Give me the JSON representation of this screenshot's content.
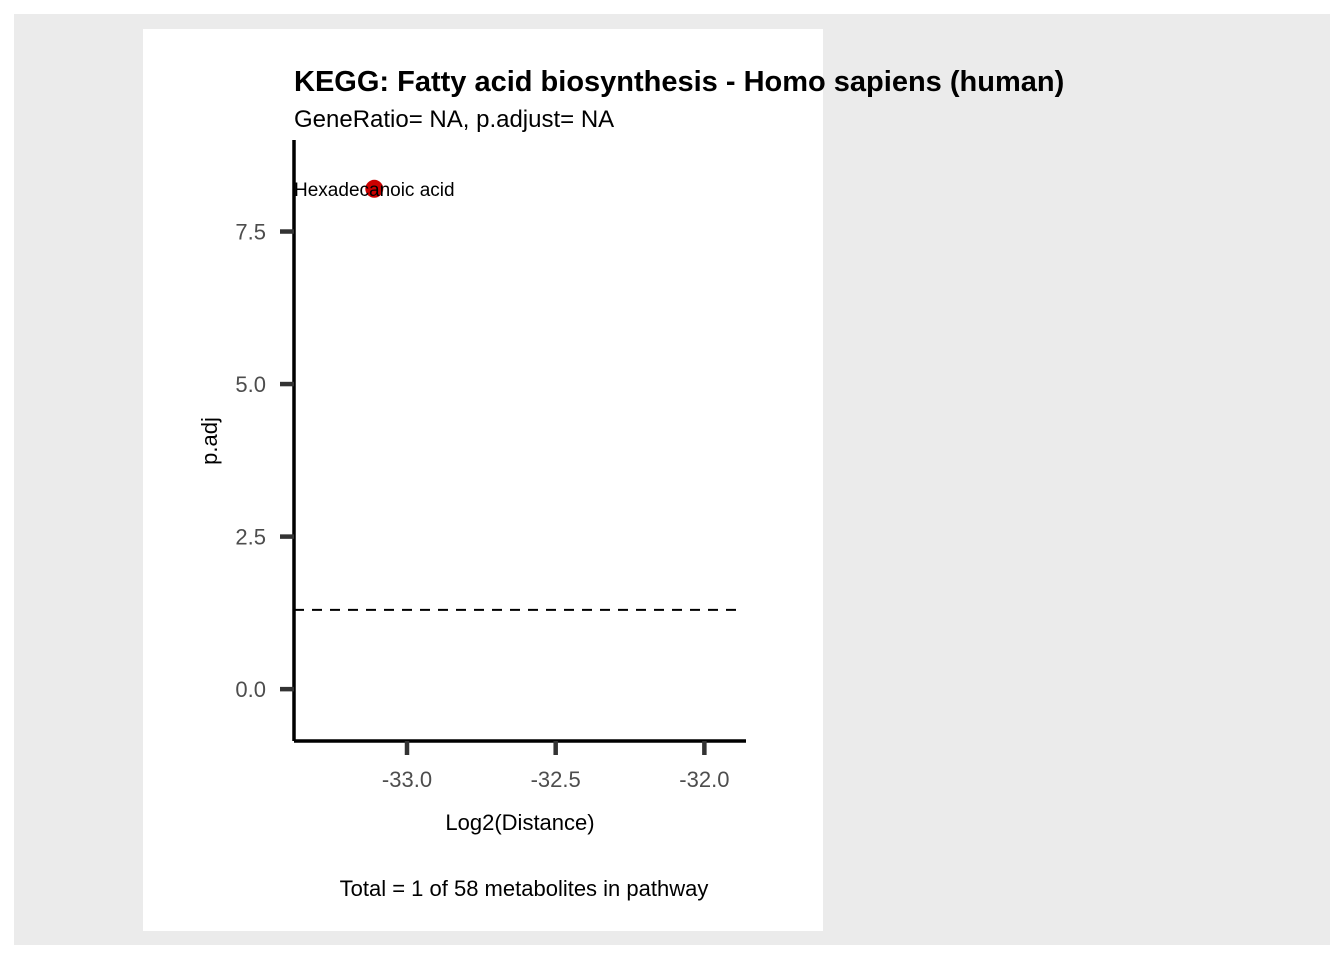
{
  "chart_data": {
    "type": "scatter",
    "title": "KEGG: Fatty acid biosynthesis - Homo sapiens (human)",
    "subtitle": "GeneRatio= NA, p.adjust= NA",
    "xlabel": "Log2(Distance)",
    "ylabel": "p.adj",
    "caption": "Total = 1 of 58 metabolites in pathway",
    "xlim": [
      -33.38,
      -31.86
    ],
    "ylim": [
      -0.85,
      9.0
    ],
    "x_ticks": [
      -33.0,
      -32.5,
      -32.0
    ],
    "x_tick_labels": [
      "-33.0",
      "-32.5",
      "-32.0"
    ],
    "y_ticks": [
      0.0,
      2.5,
      5.0,
      7.5
    ],
    "y_tick_labels": [
      "0.0",
      "2.5",
      "5.0",
      "7.5"
    ],
    "reference_line": {
      "y": 1.3,
      "style": "dashed",
      "color": "#000000"
    },
    "points": [
      {
        "x": -33.11,
        "y": 8.2,
        "label": "Hexadecanoic acid",
        "color": "#cc0000"
      }
    ],
    "grid": false,
    "colors": {
      "outer_background": "#ebebeb",
      "panel_background": "#ffffff",
      "point": "#cc0000",
      "axis": "#000000",
      "tick": "#333333",
      "tick_label": "#4d4d4d"
    }
  }
}
